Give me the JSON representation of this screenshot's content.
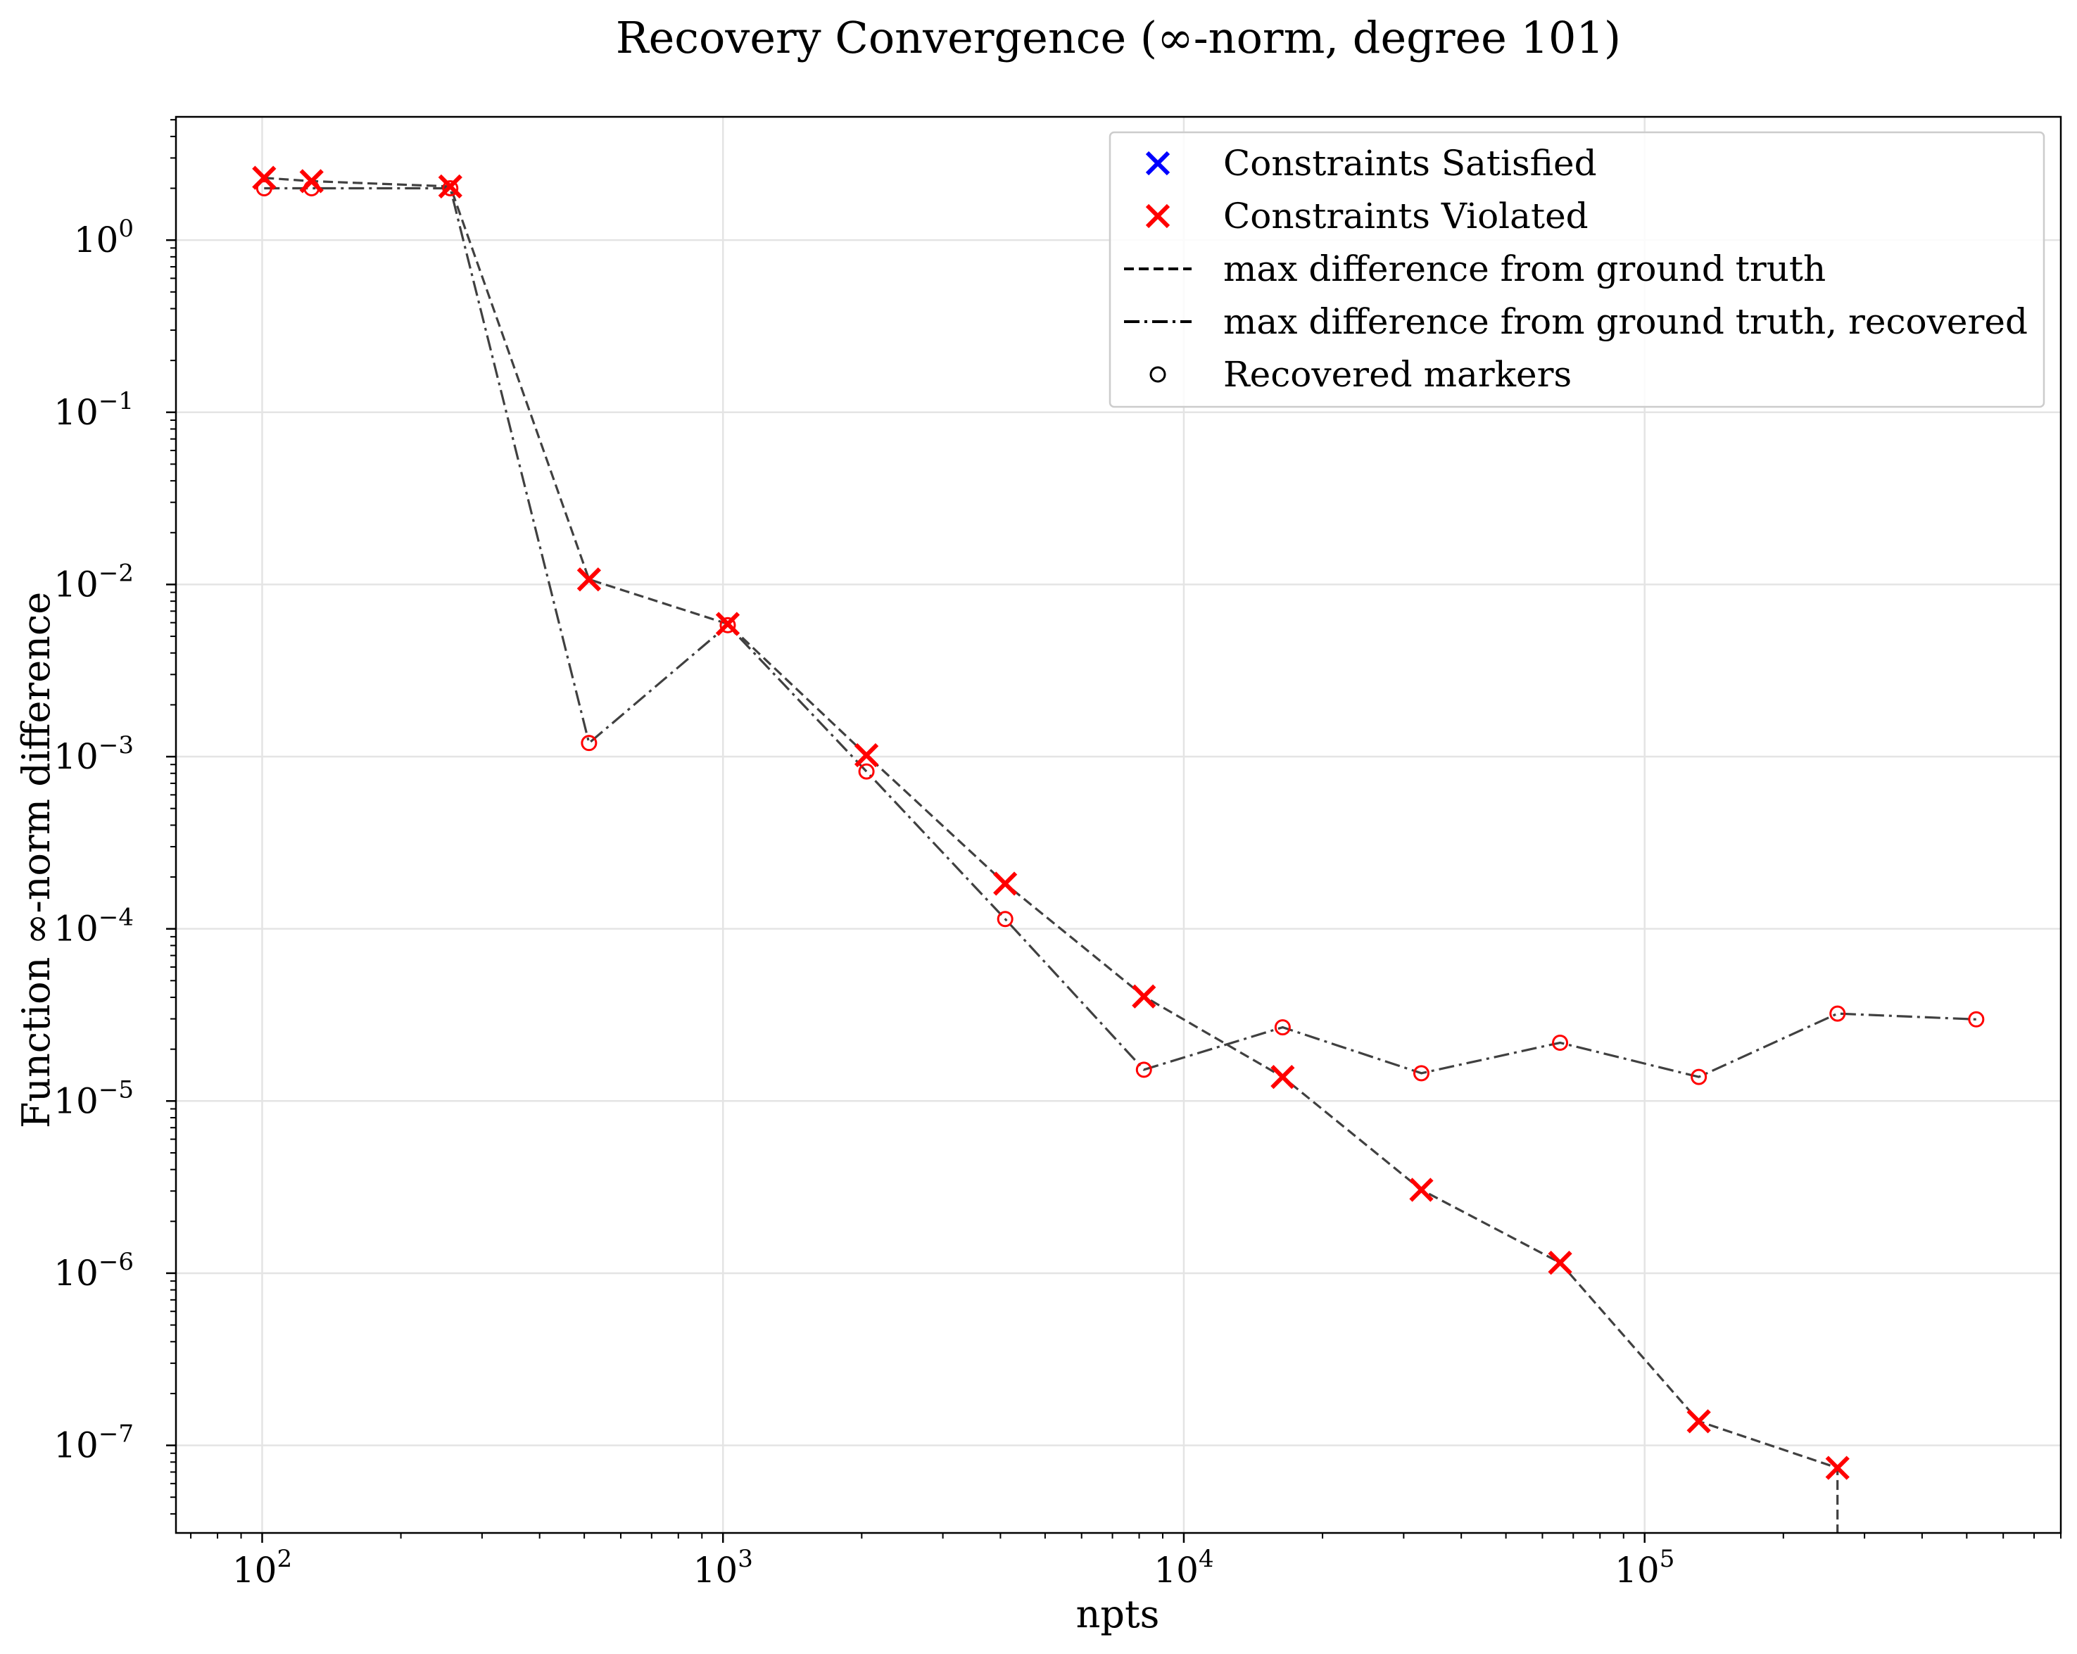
{
  "chart_data": {
    "type": "line",
    "title": "Recovery Convergence (∞-norm, degree 101)",
    "xlabel": "npts",
    "ylabel": "Function ∞-norm difference",
    "xscale": "log",
    "yscale": "log",
    "xlim": [
      65,
      800000
    ],
    "ylim": [
      3.1e-08,
      5.2
    ],
    "grid": true,
    "legend_position": "top-right",
    "x_ticks": [
      {
        "value": 100,
        "base": "10",
        "exp": "2"
      },
      {
        "value": 1000,
        "base": "10",
        "exp": "3"
      },
      {
        "value": 10000,
        "base": "10",
        "exp": "4"
      },
      {
        "value": 100000,
        "base": "10",
        "exp": "5"
      }
    ],
    "y_ticks": [
      {
        "value": 1,
        "base": "10",
        "exp": "0"
      },
      {
        "value": 0.1,
        "base": "10",
        "exp": "−1"
      },
      {
        "value": 0.01,
        "base": "10",
        "exp": "−2"
      },
      {
        "value": 0.001,
        "base": "10",
        "exp": "−3"
      },
      {
        "value": 0.0001,
        "base": "10",
        "exp": "−4"
      },
      {
        "value": 1e-05,
        "base": "10",
        "exp": "−5"
      },
      {
        "value": 1e-06,
        "base": "10",
        "exp": "−6"
      },
      {
        "value": 1e-07,
        "base": "10",
        "exp": "−7"
      }
    ],
    "legend": [
      {
        "label": "Constraints Satisfied",
        "kind": "cross",
        "color": "#0000ff"
      },
      {
        "label": "Constraints Violated",
        "kind": "cross",
        "color": "#ff0000"
      },
      {
        "label": "max difference from ground truth",
        "kind": "dashed",
        "color": "#000000"
      },
      {
        "label": "max difference from ground truth, recovered",
        "kind": "dashdot",
        "color": "#000000"
      },
      {
        "label": "Recovered markers",
        "kind": "circle",
        "color": "#000000"
      }
    ],
    "series": [
      {
        "name": "max difference from ground truth",
        "style": "dashed",
        "color": "#404040",
        "marker": "cross",
        "marker_color": "#ff0000",
        "x": [
          101,
          128,
          256,
          512,
          1024,
          2048,
          4096,
          8192,
          16384,
          32768,
          65536,
          131072,
          262144,
          262144
        ],
        "y": [
          2.3,
          2.2,
          2.05,
          0.0107,
          0.0059,
          0.00102,
          0.000183,
          4.05e-05,
          1.38e-05,
          3.05e-06,
          1.15e-06,
          1.38e-07,
          7.4e-08,
          3.1e-08
        ],
        "marker_count": 13
      },
      {
        "name": "max difference from ground truth, recovered",
        "style": "dashdot",
        "color": "#404040",
        "marker": "circle",
        "marker_color": "#ff0000",
        "x": [
          101,
          128,
          256,
          512,
          1024,
          2048,
          4096,
          8192,
          16384,
          32768,
          65536,
          131072,
          262144,
          524288
        ],
        "y": [
          2.0,
          2.0,
          2.0,
          0.0012,
          0.0058,
          0.00082,
          0.000114,
          1.52e-05,
          2.68e-05,
          1.45e-05,
          2.18e-05,
          1.38e-05,
          3.22e-05,
          2.98e-05
        ]
      }
    ]
  }
}
